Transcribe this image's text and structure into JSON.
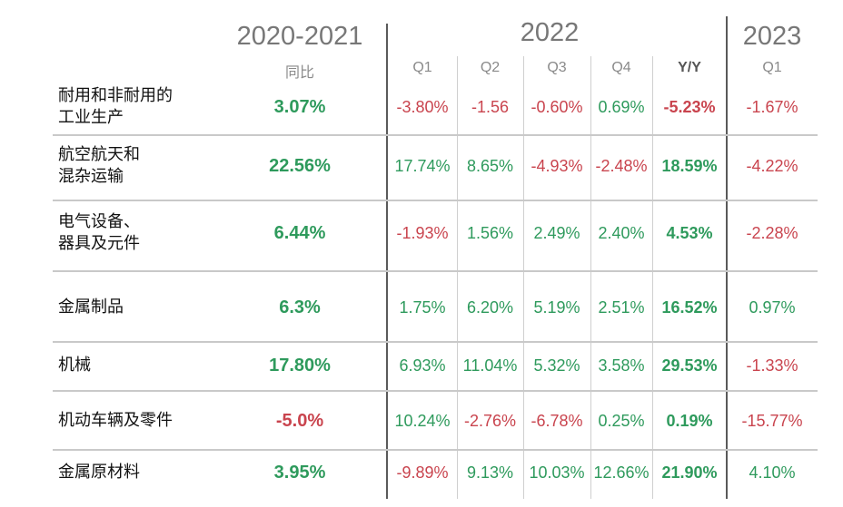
{
  "chart_data": {
    "type": "table",
    "headers": {
      "period_2020_2021": "2020-2021",
      "period_2022": "2022",
      "period_2023": "2023",
      "yoy_label": "同比",
      "q1": "Q1",
      "q2": "Q2",
      "q3": "Q3",
      "q4": "Q4",
      "yy": "Y/Y",
      "q1_2023": "Q1"
    },
    "rows": [
      {
        "label_line1": "耐用和非耐用的",
        "label_line2": "工业生产",
        "yoy_2020_2021": "3.07%",
        "q1": "-3.80%",
        "q2": "-1.56",
        "q3": "-0.60%",
        "q4": "0.69%",
        "yy": "-5.23%",
        "q1_2023": "-1.67%"
      },
      {
        "label_line1": "航空航天和",
        "label_line2": "混杂运输",
        "yoy_2020_2021": "22.56%",
        "q1": "17.74%",
        "q2": "8.65%",
        "q3": "-4.93%",
        "q4": "-2.48%",
        "yy": "18.59%",
        "q1_2023": "-4.22%"
      },
      {
        "label_line1": "电气设备、",
        "label_line2": "器具及元件",
        "yoy_2020_2021": "6.44%",
        "q1": "-1.93%",
        "q2": "1.56%",
        "q3": "2.49%",
        "q4": "2.40%",
        "yy": "4.53%",
        "q1_2023": "-2.28%"
      },
      {
        "label_line1": "金属制品",
        "label_line2": "",
        "yoy_2020_2021": "6.3%",
        "q1": "1.75%",
        "q2": "6.20%",
        "q3": "5.19%",
        "q4": "2.51%",
        "yy": "16.52%",
        "q1_2023": "0.97%"
      },
      {
        "label_line1": "机械",
        "label_line2": "",
        "yoy_2020_2021": "17.80%",
        "q1": "6.93%",
        "q2": "11.04%",
        "q3": "5.32%",
        "q4": "3.58%",
        "yy": "29.53%",
        "q1_2023": "-1.33%"
      },
      {
        "label_line1": "机动车辆及零件",
        "label_line2": "",
        "yoy_2020_2021": "-5.0%",
        "q1": "10.24%",
        "q2": "-2.76%",
        "q3": "-6.78%",
        "q4": "0.25%",
        "yy": "0.19%",
        "q1_2023": "-15.77%"
      },
      {
        "label_line1": "金属原材料",
        "label_line2": "",
        "yoy_2020_2021": "3.95%",
        "q1": "-9.89%",
        "q2": "9.13%",
        "q3": "10.03%",
        "q4": "12.66%",
        "yy": "21.90%",
        "q1_2023": "4.10%"
      }
    ],
    "colors": {
      "positive": "#2e9a5c",
      "negative": "#c9444e",
      "header": "#777777"
    }
  }
}
